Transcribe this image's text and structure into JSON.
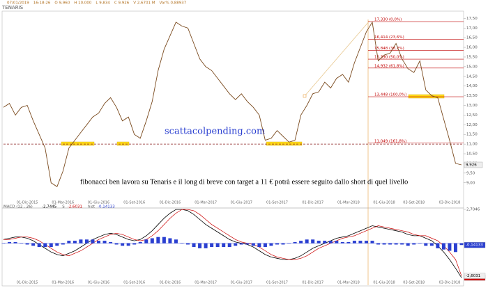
{
  "chart_data": [
    {
      "type": "line",
      "title": "TENARIS",
      "header": [
        "07/01/2019",
        "16:18:26",
        "O 9,960",
        "H 10,000",
        "L 9,834",
        "C 9,926",
        "V 2,6701 M",
        "Var% 0,88937"
      ],
      "xlim": [
        0,
        77
      ],
      "xticks": [
        {
          "value": 4,
          "label": "01-Dic-2015"
        },
        {
          "value": 10,
          "label": "01-Mar-2016"
        },
        {
          "value": 16,
          "label": "01-Giu-2016"
        },
        {
          "value": 22,
          "label": "01-Set-2016"
        },
        {
          "value": 28,
          "label": "01-Dic-2016"
        },
        {
          "value": 34,
          "label": "01-Mar-2017"
        },
        {
          "value": 40,
          "label": "01-Giu-2017"
        },
        {
          "value": 46,
          "label": "01-Set-2017"
        },
        {
          "value": 52,
          "label": "01-Dic-2017"
        },
        {
          "value": 58,
          "label": "01-Mar-2018"
        },
        {
          "value": 64,
          "label": "01-Giu-2018"
        },
        {
          "value": 69,
          "label": "03-Set-2018"
        },
        {
          "value": 75,
          "label": "03-Dic-2018"
        }
      ],
      "ylim": [
        8.2,
        17.8
      ],
      "yticks": [
        {
          "value": 9,
          "label": "9,00"
        },
        {
          "value": 9.5,
          "label": "9,50"
        },
        {
          "value": 10,
          "label": "10,00"
        },
        {
          "value": 10.5,
          "label": "10,50"
        },
        {
          "value": 11,
          "label": "11,00"
        },
        {
          "value": 11.5,
          "label": "11,50"
        },
        {
          "value": 12,
          "label": "12,00"
        },
        {
          "value": 12.5,
          "label": "12,50"
        },
        {
          "value": 13,
          "label": "13,00"
        },
        {
          "value": 13.5,
          "label": "13,50"
        },
        {
          "value": 14,
          "label": "14,00"
        },
        {
          "value": 14.5,
          "label": "14,50"
        },
        {
          "value": 15,
          "label": "15,00"
        },
        {
          "value": 15.5,
          "label": "15,50"
        },
        {
          "value": 16,
          "label": "16,00"
        },
        {
          "value": 16.5,
          "label": "16,50"
        },
        {
          "value": 17,
          "label": "17,00"
        },
        {
          "value": 17.5,
          "label": "17,50"
        }
      ],
      "series": [
        {
          "color": "#7a4a1e",
          "value_label": "9,926",
          "values": [
            12.9,
            13.1,
            12.5,
            12.9,
            13.0,
            12.2,
            11.5,
            10.8,
            9.0,
            8.8,
            9.6,
            10.8,
            11.2,
            11.6,
            12.0,
            12.4,
            12.6,
            13.1,
            13.4,
            12.9,
            12.2,
            12.4,
            11.5,
            11.3,
            12.2,
            13.2,
            14.8,
            15.9,
            16.6,
            17.3,
            17.1,
            17.0,
            16.2,
            15.4,
            15.0,
            14.8,
            14.4,
            14.0,
            13.6,
            13.3,
            13.6,
            13.2,
            12.9,
            12.5,
            11.2,
            11.3,
            11.7,
            11.4,
            11.1,
            11.2,
            12.5,
            13.0,
            13.6,
            13.7,
            14.2,
            13.9,
            14.4,
            14.6,
            14.2,
            15.2,
            16.0,
            16.8,
            17.3,
            15.3,
            15.6,
            15.7,
            16.2,
            15.4,
            14.9,
            14.7,
            15.3,
            13.8,
            13.5,
            13.4,
            12.3,
            11.2,
            10.0,
            9.926
          ]
        }
      ],
      "fibonacci": [
        {
          "value": 17.33,
          "label": "17,330 (0,0%)"
        },
        {
          "value": 16.414,
          "label": "16,414 (23,6%)"
        },
        {
          "value": 15.848,
          "label": "15,848 (38,2%)"
        },
        {
          "value": 15.39,
          "label": "15,390 (50,0%)"
        },
        {
          "value": 14.932,
          "label": "14,932 (61,8%)"
        },
        {
          "value": 13.448,
          "label": "13,448 (100,0%)"
        },
        {
          "value": 11.049,
          "label": "11,049 (161,8%)"
        }
      ],
      "support_line": 11,
      "watermark": "scattacolpending.com",
      "annotation": "fibonacci ben lavora su Tenaris e il long di breve con target a 11 € potrà essere seguito dallo short di quel livello"
    },
    {
      "type": "line",
      "title": "MACD (12 , 26)",
      "xlim": [
        0,
        77
      ],
      "ylim": [
        -2.85,
        2.7046
      ],
      "yticks": [
        {
          "value": 2.7046,
          "label": "2,7046"
        }
      ],
      "series": [
        {
          "color": "#000000",
          "value_label": "-2,7445",
          "values": [
            0.3,
            0.4,
            0.5,
            0.5,
            0.4,
            0.2,
            -0.1,
            -0.4,
            -0.7,
            -0.9,
            -1.0,
            -0.8,
            -0.6,
            -0.3,
            0,
            0.3,
            0.5,
            0.7,
            0.8,
            0.7,
            0.5,
            0.3,
            0.2,
            0.3,
            0.6,
            1.0,
            1.5,
            2.0,
            2.4,
            2.7,
            2.7,
            2.6,
            2.3,
            1.9,
            1.5,
            1.2,
            0.9,
            0.6,
            0.3,
            0.1,
            0,
            -0.1,
            -0.3,
            -0.6,
            -0.9,
            -1.1,
            -1.2,
            -1.3,
            -1.3,
            -1.2,
            -1.0,
            -0.7,
            -0.4,
            -0.2,
            0,
            0.2,
            0.4,
            0.5,
            0.6,
            0.8,
            1.0,
            1.2,
            1.4,
            1.3,
            1.2,
            1.1,
            1.0,
            0.9,
            0.7,
            0.6,
            0.6,
            0.4,
            0.2,
            -0.2,
            -0.7,
            -1.3,
            -2.0,
            -2.7445
          ]
        },
        {
          "name": "S",
          "color": "#cc0000",
          "value_label": "-2,6031",
          "values": [
            0.3,
            0.3,
            0.4,
            0.5,
            0.5,
            0.4,
            0.2,
            -0.1,
            -0.4,
            -0.7,
            -0.9,
            -1.0,
            -0.8,
            -0.6,
            -0.3,
            0,
            0.3,
            0.5,
            0.7,
            0.8,
            0.7,
            0.5,
            0.3,
            0.2,
            0.3,
            0.6,
            1.0,
            1.5,
            2.0,
            2.4,
            2.7,
            2.7,
            2.6,
            2.3,
            1.9,
            1.5,
            1.2,
            0.9,
            0.6,
            0.3,
            0.1,
            0,
            -0.1,
            -0.3,
            -0.6,
            -0.9,
            -1.1,
            -1.2,
            -1.3,
            -1.3,
            -1.2,
            -1.0,
            -0.7,
            -0.4,
            -0.2,
            0,
            0.2,
            0.4,
            0.5,
            0.6,
            0.8,
            1.0,
            1.2,
            1.4,
            1.3,
            1.2,
            1.1,
            1.0,
            0.9,
            0.7,
            0.6,
            0.6,
            0.4,
            0.2,
            -0.2,
            -0.7,
            -1.3,
            -2.6031
          ]
        },
        {
          "name": "hist",
          "type": "bar",
          "color": "#2a3fd0",
          "value_label": "-0,14133",
          "values": [
            0,
            0.1,
            0.1,
            0,
            -0.1,
            -0.2,
            -0.3,
            -0.3,
            -0.3,
            -0.2,
            -0.1,
            0.2,
            0.2,
            0.3,
            0.3,
            0.3,
            0.2,
            0.2,
            0.1,
            -0.1,
            -0.2,
            -0.2,
            -0.1,
            0.1,
            0.3,
            0.4,
            0.5,
            0.5,
            0.4,
            0.3,
            0,
            -0.1,
            -0.3,
            -0.4,
            -0.4,
            -0.3,
            -0.3,
            -0.3,
            -0.3,
            -0.2,
            -0.1,
            -0.1,
            -0.2,
            -0.3,
            -0.3,
            -0.2,
            -0.1,
            -0.1,
            0,
            0.1,
            0.2,
            0.3,
            0.3,
            0.2,
            0.2,
            0.2,
            0.2,
            0.1,
            0.1,
            0.2,
            0.2,
            0.2,
            0.2,
            -0.1,
            -0.1,
            -0.1,
            -0.1,
            -0.1,
            -0.2,
            -0.1,
            0,
            -0.2,
            -0.2,
            -0.4,
            -0.5,
            -0.6,
            -0.7,
            -0.14133
          ]
        }
      ]
    }
  ]
}
